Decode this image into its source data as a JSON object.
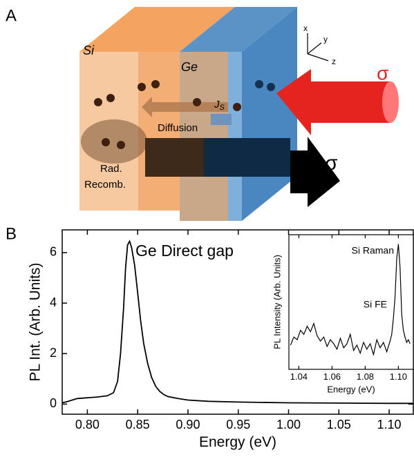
{
  "panel_a": {
    "label": "A",
    "si": "Si",
    "ge": "Ge",
    "axis_x": "x",
    "axis_y": "y",
    "axis_z": "z",
    "sigma_in": "σ",
    "sigma_out": "σ",
    "js_main": "J",
    "js_sub": "S",
    "diffusion": "Diffusion",
    "rad": "Rad.",
    "recomb": "Recomb."
  },
  "panel_b": {
    "label": "B"
  },
  "chart_data": [
    {
      "type": "line",
      "xlabel": "Energy (eV)",
      "ylabel": "PL Int. (Arb. Units)",
      "annotation": "Ge Direct gap",
      "color": "#000000",
      "x": [
        0.775,
        0.78,
        0.79,
        0.8,
        0.81,
        0.82,
        0.826,
        0.83,
        0.833,
        0.836,
        0.838,
        0.84,
        0.842,
        0.844,
        0.847,
        0.85,
        0.853,
        0.856,
        0.86,
        0.864,
        0.868,
        0.872,
        0.876,
        0.88,
        0.89,
        0.9,
        0.92,
        0.95,
        1.0,
        1.05,
        1.1,
        1.124
      ],
      "values": [
        0.05,
        0.1,
        0.22,
        0.25,
        0.28,
        0.33,
        0.45,
        0.9,
        2.0,
        3.8,
        5.4,
        6.3,
        6.45,
        6.2,
        5.5,
        4.4,
        3.3,
        2.4,
        1.6,
        1.05,
        0.7,
        0.5,
        0.38,
        0.3,
        0.22,
        0.16,
        0.11,
        0.08,
        0.05,
        0.04,
        0.03,
        0.03
      ],
      "xlim": [
        0.775,
        1.124
      ],
      "ylim": [
        -0.4,
        6.9
      ],
      "xticks": [
        {
          "value": 0.8,
          "label": "0.80"
        },
        0.85,
        {
          "value": 0.9,
          "label": "0.90"
        },
        0.95,
        {
          "value": 1.0,
          "label": "1.00"
        },
        1.05,
        {
          "value": 1.1,
          "label": "1.10"
        }
      ],
      "yticks": [
        0,
        2,
        4,
        6
      ]
    },
    {
      "type": "line",
      "xlabel": "Energy (eV)",
      "ylabel": "PL Intensity (Arb. Units)",
      "annotations": [
        "Si Raman",
        "Si FE"
      ],
      "color": "#000000",
      "x": [
        1.035,
        1.037,
        1.039,
        1.041,
        1.043,
        1.045,
        1.047,
        1.049,
        1.051,
        1.053,
        1.055,
        1.057,
        1.059,
        1.061,
        1.063,
        1.065,
        1.067,
        1.069,
        1.071,
        1.073,
        1.075,
        1.077,
        1.079,
        1.081,
        1.083,
        1.085,
        1.087,
        1.089,
        1.091,
        1.093,
        1.095,
        1.096,
        1.097,
        1.098,
        1.099,
        1.1,
        1.101,
        1.102,
        1.103,
        1.104,
        1.105,
        1.106,
        1.107
      ],
      "values": [
        1.8,
        2.4,
        2.2,
        2.9,
        2.6,
        3.2,
        2.8,
        3.4,
        2.5,
        2.1,
        2.4,
        1.7,
        2.2,
        1.9,
        1.5,
        2.3,
        1.6,
        1.9,
        2.6,
        1.4,
        1.8,
        1.2,
        2.0,
        1.5,
        1.9,
        1.1,
        2.2,
        1.6,
        2.0,
        1.3,
        2.1,
        2.6,
        3.8,
        5.4,
        8.2,
        9.3,
        7.6,
        4.1,
        2.9,
        2.4,
        2.0,
        2.2,
        1.9
      ],
      "xlim": [
        1.034,
        1.109
      ],
      "ylim": [
        0,
        10
      ],
      "xticks": [
        1.04,
        1.06,
        1.08,
        {
          "value": 1.1,
          "label": "1.10"
        }
      ]
    }
  ]
}
